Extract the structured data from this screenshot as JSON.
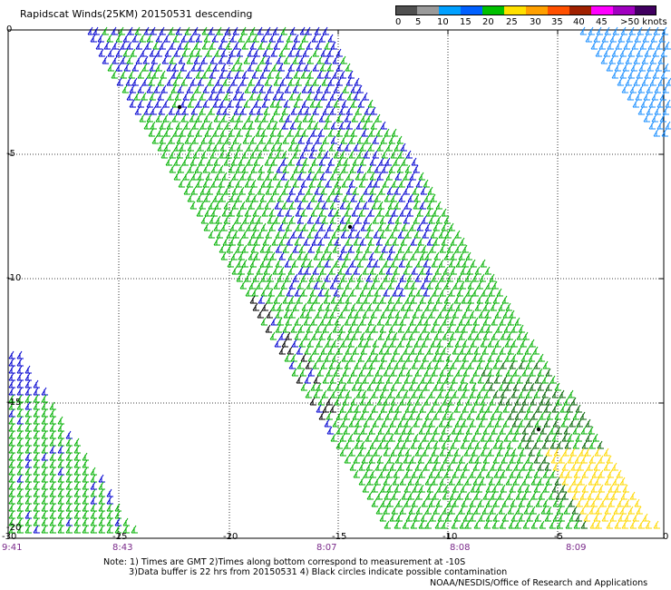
{
  "title": "Rapidscat Winds(25KM) 20150531 descending",
  "colorbar": {
    "labels": [
      "0",
      "5",
      "10",
      "15",
      "20",
      "25",
      "30",
      "35",
      "40",
      "45",
      ">50 knots"
    ],
    "colors": [
      "#505050",
      "#9a9a9a",
      "#00a0ff",
      "#0060ff",
      "#00c000",
      "#ffe000",
      "#ffa000",
      "#ff5000",
      "#a02000",
      "#ff00ff",
      "#a000c0",
      "#400060"
    ]
  },
  "axes": {
    "lon_labels": [
      "-30",
      "-25",
      "-20",
      "-15",
      "-10",
      "-5",
      "0"
    ],
    "lat_labels": [
      "0",
      "-5",
      "-10",
      "-15",
      "-20"
    ]
  },
  "times": [
    "9:41",
    "8:43",
    "8:07",
    "8:08",
    "8:09"
  ],
  "notes": {
    "line1": "Note: 1) Times are GMT 2)Times along bottom correspond to measurement at -10S",
    "line2": "3)Data buffer is 22 hrs from 20150531 4) Black circles indicate possible contamination"
  },
  "credit": "NOAA/NESDIS/Office of Research and Applications",
  "swath_colors": {
    "blue": "#0000d0",
    "green": "#00b000",
    "darkgreen": "#006000",
    "yellow": "#ffd800",
    "black": "#000000",
    "lightblue": "#1e90ff"
  }
}
